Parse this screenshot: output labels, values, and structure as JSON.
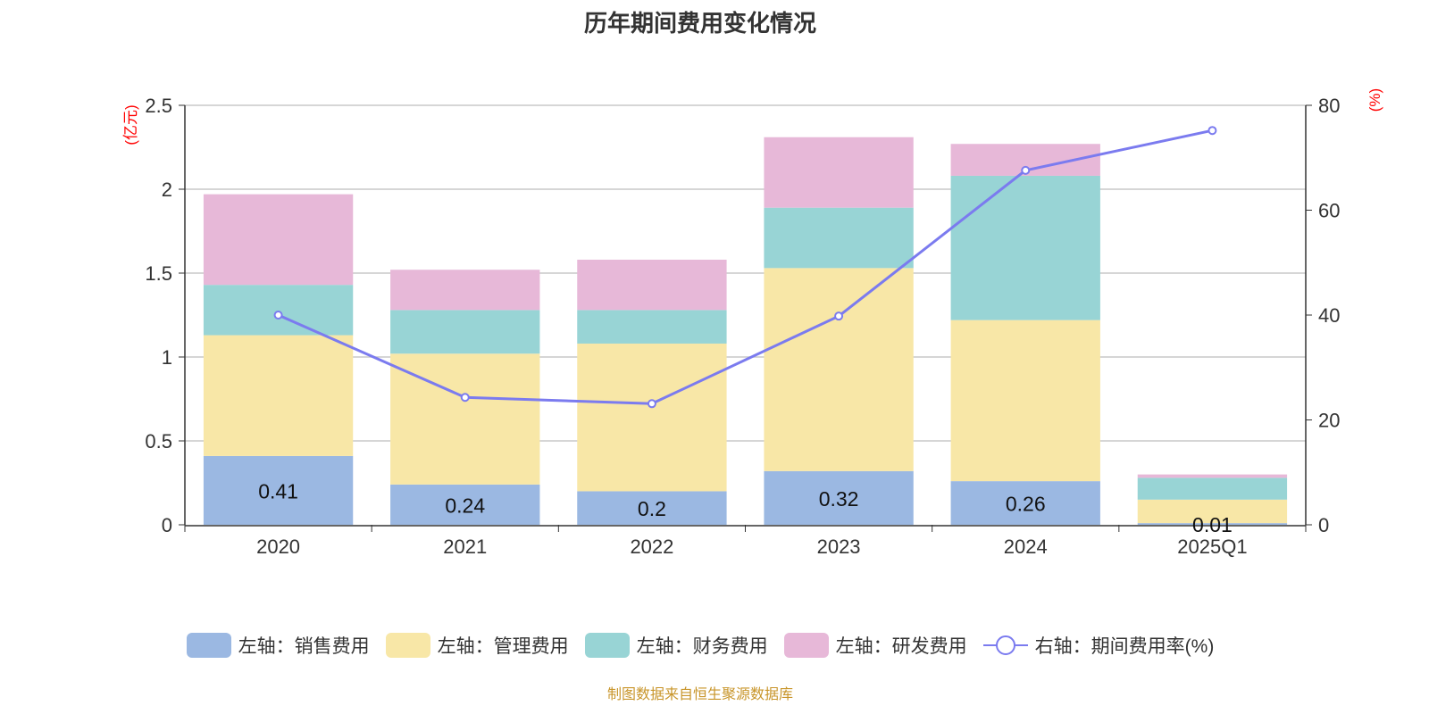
{
  "title": "历年期间费用变化情况",
  "source": "制图数据来自恒生聚源数据库",
  "chart_data": {
    "type": "bar",
    "stacked": true,
    "title": "历年期间费用变化情况",
    "categories": [
      "2020",
      "2021",
      "2022",
      "2023",
      "2024",
      "2025Q1"
    ],
    "left_axis": {
      "unit": "(亿元)",
      "ylim": [
        0,
        2.5
      ],
      "ticks": [
        "0",
        "0.5",
        "1",
        "1.5",
        "2",
        "2.5"
      ]
    },
    "right_axis": {
      "unit": "(%)",
      "ylim": [
        0,
        80
      ],
      "ticks": [
        "0",
        "20",
        "40",
        "60",
        "80"
      ]
    },
    "grid": true,
    "legend_placement": "bottom",
    "series": [
      {
        "name": "左轴：销售费用",
        "axis": "left",
        "color": "#9bb8e2",
        "values": [
          0.41,
          0.24,
          0.2,
          0.32,
          0.26,
          0.01
        ],
        "labels": [
          "0.41",
          "0.24",
          "0.2",
          "0.32",
          "0.26",
          "0.01"
        ]
      },
      {
        "name": "左轴：管理费用",
        "axis": "left",
        "color": "#f8e7a7",
        "values": [
          0.72,
          0.78,
          0.88,
          1.21,
          0.96,
          0.14
        ]
      },
      {
        "name": "左轴：财务费用",
        "axis": "left",
        "color": "#98d4d5",
        "values": [
          0.3,
          0.26,
          0.2,
          0.36,
          0.86,
          0.13
        ]
      },
      {
        "name": "左轴：研发费用",
        "axis": "left",
        "color": "#e7b8d8",
        "values": [
          0.54,
          0.24,
          0.3,
          0.42,
          0.19,
          0.02
        ]
      },
      {
        "name": "右轴：期间费用率(%)",
        "axis": "right",
        "type": "line",
        "color": "#7b7bef",
        "values": [
          40.0,
          24.3,
          23.1,
          39.8,
          67.6,
          75.2
        ]
      }
    ]
  }
}
